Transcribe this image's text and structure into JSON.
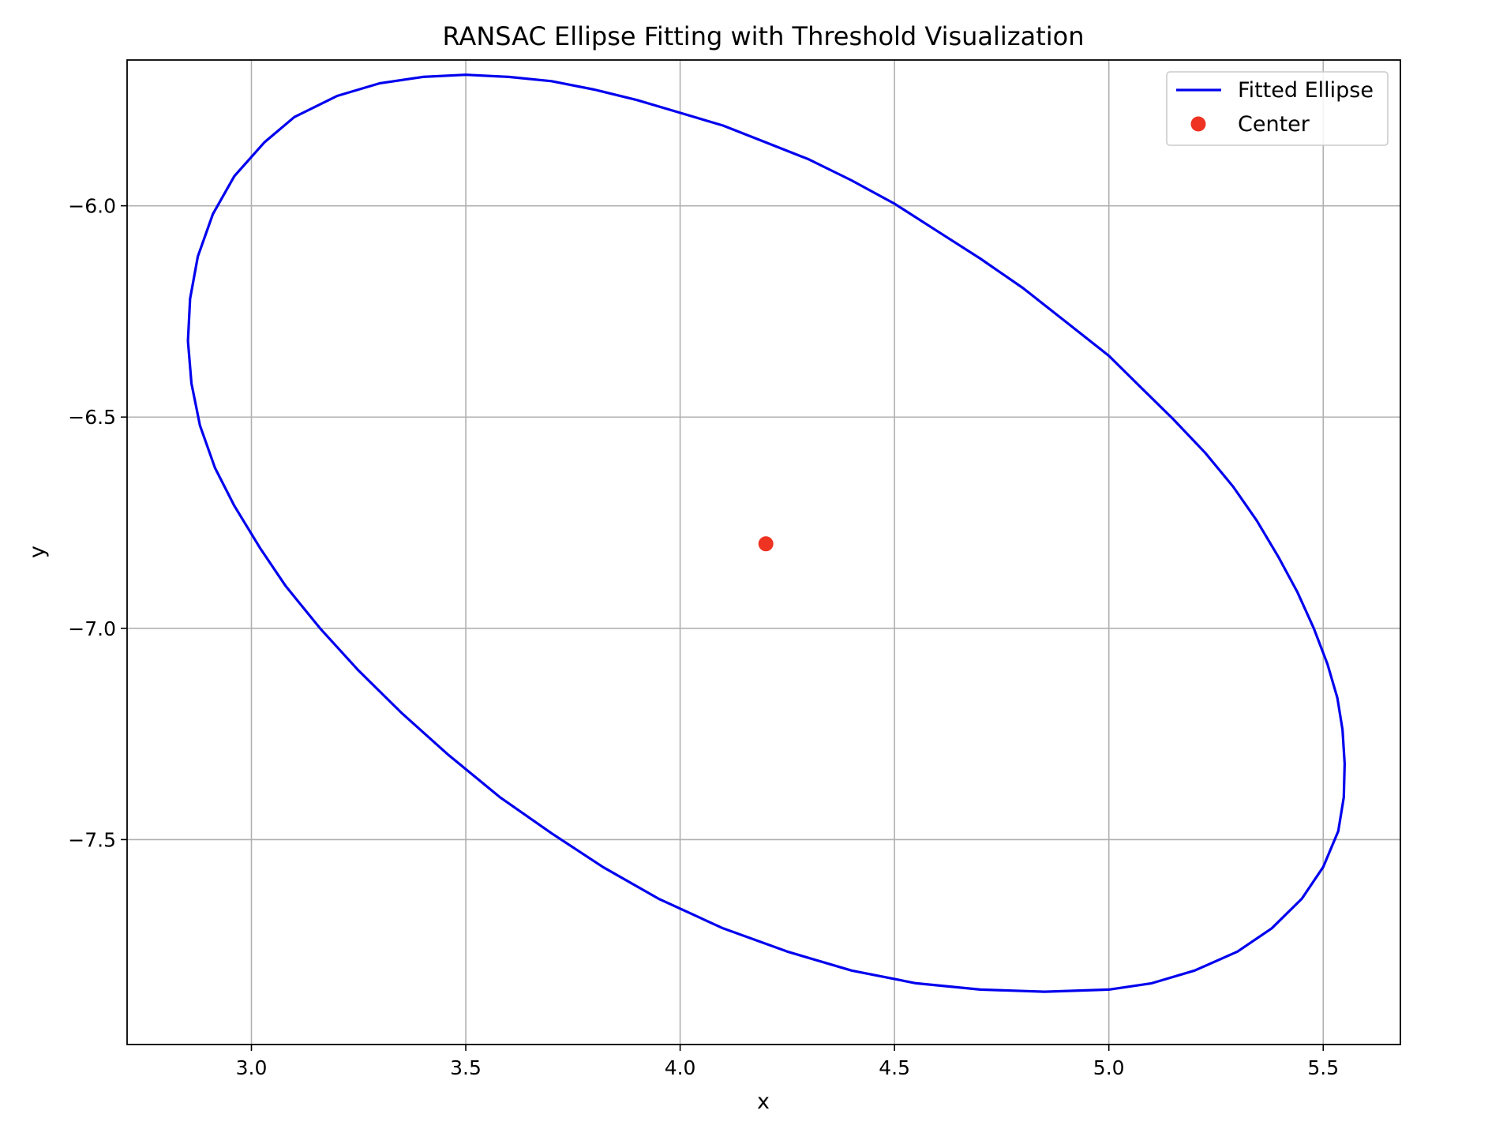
{
  "chart_data": {
    "type": "line",
    "title": "RANSAC Ellipse Fitting with Threshold Visualization",
    "xlabel": "x",
    "ylabel": "y",
    "xlim": [
      2.71,
      5.68
    ],
    "ylim": [
      -7.985,
      -5.655
    ],
    "x_ticks": [
      3.0,
      3.5,
      4.0,
      4.5,
      5.0,
      5.5
    ],
    "x_tick_labels": [
      "3.0",
      "3.5",
      "4.0",
      "4.5",
      "5.0",
      "5.5"
    ],
    "y_ticks": [
      -6.0,
      -6.5,
      -7.0,
      -7.5
    ],
    "y_tick_labels": [
      "−6.0",
      "−6.5",
      "−7.0",
      "−7.5"
    ],
    "grid": true,
    "legend_position": "top-right",
    "series": [
      {
        "name": "Fitted Ellipse",
        "kind": "line",
        "color": "#0000ee",
        "points": [
          [
            5.55,
            -7.32
          ],
          [
            5.545,
            -7.24
          ],
          [
            5.533,
            -7.165
          ],
          [
            5.51,
            -7.085
          ],
          [
            5.478,
            -7.0
          ],
          [
            5.44,
            -6.915
          ],
          [
            5.395,
            -6.83
          ],
          [
            5.345,
            -6.745
          ],
          [
            5.29,
            -6.665
          ],
          [
            5.225,
            -6.585
          ],
          [
            5.15,
            -6.505
          ],
          [
            5.075,
            -6.43
          ],
          [
            5.0,
            -6.355
          ],
          [
            4.9,
            -6.275
          ],
          [
            4.8,
            -6.195
          ],
          [
            4.7,
            -6.125
          ],
          [
            4.6,
            -6.06
          ],
          [
            4.5,
            -5.995
          ],
          [
            4.4,
            -5.94
          ],
          [
            4.3,
            -5.89
          ],
          [
            4.2,
            -5.85
          ],
          [
            4.1,
            -5.81
          ],
          [
            4.0,
            -5.78
          ],
          [
            3.9,
            -5.75
          ],
          [
            3.8,
            -5.725
          ],
          [
            3.7,
            -5.705
          ],
          [
            3.6,
            -5.695
          ],
          [
            3.5,
            -5.69
          ],
          [
            3.4,
            -5.695
          ],
          [
            3.3,
            -5.71
          ],
          [
            3.2,
            -5.74
          ],
          [
            3.1,
            -5.79
          ],
          [
            3.03,
            -5.85
          ],
          [
            2.96,
            -5.93
          ],
          [
            2.91,
            -6.02
          ],
          [
            2.875,
            -6.12
          ],
          [
            2.857,
            -6.22
          ],
          [
            2.852,
            -6.32
          ],
          [
            2.86,
            -6.42
          ],
          [
            2.88,
            -6.52
          ],
          [
            2.915,
            -6.62
          ],
          [
            2.96,
            -6.71
          ],
          [
            3.02,
            -6.81
          ],
          [
            3.08,
            -6.9
          ],
          [
            3.16,
            -7.0
          ],
          [
            3.25,
            -7.1
          ],
          [
            3.35,
            -7.2
          ],
          [
            3.46,
            -7.3
          ],
          [
            3.58,
            -7.4
          ],
          [
            3.7,
            -7.485
          ],
          [
            3.82,
            -7.565
          ],
          [
            3.95,
            -7.64
          ],
          [
            4.1,
            -7.71
          ],
          [
            4.25,
            -7.765
          ],
          [
            4.4,
            -7.81
          ],
          [
            4.55,
            -7.84
          ],
          [
            4.7,
            -7.855
          ],
          [
            4.85,
            -7.86
          ],
          [
            5.0,
            -7.855
          ],
          [
            5.1,
            -7.84
          ],
          [
            5.2,
            -7.81
          ],
          [
            5.3,
            -7.765
          ],
          [
            5.38,
            -7.71
          ],
          [
            5.45,
            -7.64
          ],
          [
            5.5,
            -7.565
          ],
          [
            5.535,
            -7.48
          ],
          [
            5.548,
            -7.4
          ],
          [
            5.55,
            -7.32
          ]
        ]
      },
      {
        "name": "Center",
        "kind": "point",
        "color": "#ee3322",
        "points": [
          [
            4.2,
            -6.8
          ]
        ]
      }
    ]
  }
}
